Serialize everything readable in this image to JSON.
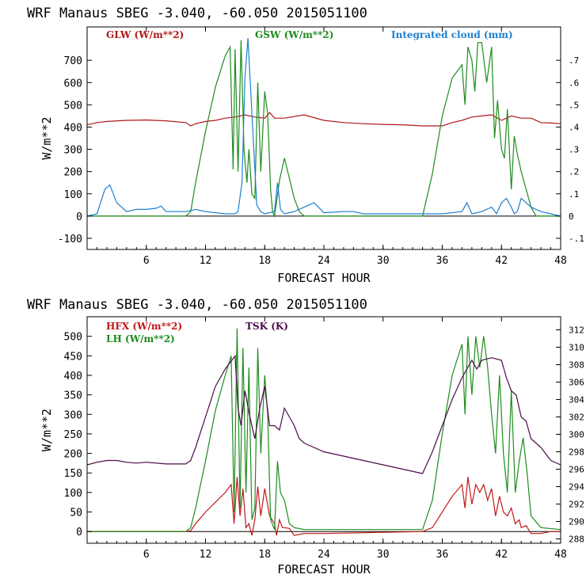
{
  "chart_data": [
    {
      "type": "line",
      "title": "WRF   Manaus SBEG   -3.040, -60.050  2015051100",
      "xlabel": "FORECAST HOUR",
      "ylabel": "W/m**2",
      "xlim": [
        0,
        48
      ],
      "xticks": [
        6,
        12,
        18,
        24,
        30,
        36,
        42,
        48
      ],
      "ylim": [
        -150,
        850
      ],
      "yticks": [
        -100,
        0,
        100,
        200,
        300,
        400,
        500,
        600,
        700
      ],
      "ytick_labels": [
        "-100",
        "0",
        "100",
        "200",
        "300",
        "400",
        "500",
        "600",
        "700"
      ],
      "y2lim": [
        -0.15,
        0.85
      ],
      "y2ticks": [
        -0.1,
        0,
        0.1,
        0.2,
        0.3,
        0.4,
        0.5,
        0.6,
        0.7
      ],
      "y2tick_labels": [
        "-.1",
        "0",
        ".1",
        ".2",
        ".3",
        ".4",
        ".5",
        ".6",
        ".7"
      ],
      "zero_line": true,
      "series": [
        {
          "name": "GLW (W/m**2)",
          "color": "#b01818",
          "axis": "left",
          "x": [
            0,
            1,
            2,
            4,
            6,
            8,
            10,
            10.5,
            11,
            12,
            13,
            14,
            15,
            16,
            17,
            18,
            18.5,
            19,
            20,
            22,
            24,
            26,
            28,
            30,
            32,
            34,
            36,
            37,
            38,
            39,
            40,
            41,
            42,
            43,
            44,
            45,
            46,
            47,
            48
          ],
          "y": [
            410,
            420,
            425,
            430,
            432,
            428,
            420,
            405,
            415,
            425,
            430,
            440,
            445,
            455,
            445,
            440,
            465,
            440,
            440,
            455,
            430,
            420,
            415,
            412,
            410,
            405,
            405,
            420,
            430,
            445,
            450,
            455,
            430,
            450,
            440,
            440,
            420,
            418,
            415
          ]
        },
        {
          "name": "GSW (W/m**2)",
          "color": "#1e8c1e",
          "axis": "left",
          "x": [
            0,
            10,
            10.5,
            11,
            12,
            13,
            14,
            14.5,
            14.8,
            15,
            15.3,
            15.6,
            15.9,
            16.2,
            16.4,
            16.7,
            17,
            17.3,
            17.6,
            18,
            18.3,
            18.6,
            18.8,
            19,
            19.5,
            20,
            20.5,
            21,
            21.5,
            22,
            34,
            35,
            36,
            37,
            38,
            38.3,
            38.6,
            39,
            39.3,
            39.6,
            40,
            40.5,
            41,
            41.3,
            41.6,
            42,
            42.3,
            42.6,
            43,
            43.3,
            43.6,
            44,
            44.5,
            45,
            45.5,
            46,
            48
          ],
          "y": [
            0,
            0,
            20,
            150,
            380,
            580,
            720,
            760,
            210,
            750,
            200,
            790,
            300,
            150,
            300,
            100,
            80,
            600,
            200,
            560,
            460,
            120,
            20,
            0,
            160,
            260,
            170,
            80,
            20,
            0,
            0,
            190,
            450,
            620,
            680,
            500,
            760,
            700,
            560,
            780,
            780,
            600,
            760,
            350,
            520,
            300,
            260,
            480,
            120,
            360,
            280,
            200,
            120,
            40,
            0,
            0,
            0
          ]
        },
        {
          "name": "Integrated cloud (mm)",
          "color": "#1f7fd0",
          "axis": "right",
          "x": [
            0,
            1,
            1.8,
            2.3,
            3,
            4,
            5,
            6,
            7,
            7.5,
            8,
            9,
            10,
            11,
            12,
            14,
            15,
            15.3,
            15.7,
            16,
            16.3,
            16.6,
            16.9,
            17.2,
            17.6,
            18,
            19,
            19.3,
            19.6,
            20,
            21,
            22,
            23,
            24,
            26,
            27,
            28,
            30,
            36,
            38,
            38.5,
            39,
            40,
            41,
            41.5,
            42,
            42.5,
            43,
            43.3,
            43.6,
            44,
            45,
            46,
            47,
            48
          ],
          "y": [
            0,
            0.01,
            0.12,
            0.14,
            0.06,
            0.02,
            0.03,
            0.03,
            0.035,
            0.045,
            0.02,
            0.02,
            0.02,
            0.03,
            0.02,
            0.01,
            0.01,
            0.02,
            0.15,
            0.62,
            0.8,
            0.55,
            0.3,
            0.05,
            0.02,
            0.01,
            0.02,
            0.15,
            0.03,
            0.01,
            0.02,
            0.04,
            0.06,
            0.015,
            0.02,
            0.02,
            0.01,
            0.01,
            0.01,
            0.02,
            0.06,
            0.01,
            0.02,
            0.04,
            0.01,
            0.06,
            0.08,
            0.04,
            0.01,
            0.02,
            0.08,
            0.04,
            0.02,
            0.01,
            0.0
          ]
        }
      ]
    },
    {
      "type": "line",
      "title": "WRF   Manaus SBEG   -3.040, -60.050  2015051100",
      "xlabel": "FORECAST HOUR",
      "ylabel": "W/m**2",
      "xlim": [
        0,
        48
      ],
      "xticks": [
        6,
        12,
        18,
        24,
        30,
        36,
        42,
        48
      ],
      "ylim": [
        -30,
        550
      ],
      "yticks": [
        0,
        50,
        100,
        150,
        200,
        250,
        300,
        350,
        400,
        450,
        500
      ],
      "ytick_labels": [
        "0",
        "50",
        "100",
        "150",
        "200",
        "250",
        "300",
        "350",
        "400",
        "450",
        "500"
      ],
      "y2lim": [
        287.5,
        313.5
      ],
      "y2ticks": [
        288,
        290,
        292,
        294,
        296,
        298,
        300,
        302,
        304,
        306,
        308,
        310,
        312
      ],
      "y2tick_labels": [
        "288",
        "290",
        "292",
        "294",
        "296",
        "298",
        "300",
        "302",
        "304",
        "306",
        "308",
        "310",
        "312"
      ],
      "zero_line": true,
      "series": [
        {
          "name": "HFX (W/m**2)",
          "color": "#c01818",
          "axis": "left",
          "x": [
            0,
            10,
            10.5,
            11,
            12,
            13,
            14,
            14.6,
            14.9,
            15.2,
            15.5,
            15.8,
            16.1,
            16.4,
            16.7,
            17,
            17.3,
            17.6,
            18,
            18.5,
            19,
            19.2,
            19.5,
            19.8,
            20,
            20.5,
            21,
            22,
            24,
            34,
            35,
            36,
            37,
            38,
            38.3,
            38.6,
            39,
            39.4,
            39.8,
            40.2,
            40.6,
            41,
            41.4,
            41.8,
            42.2,
            42.6,
            43,
            43.4,
            43.8,
            44,
            44.5,
            45,
            46,
            47,
            48
          ],
          "y": [
            0,
            0,
            2,
            20,
            50,
            75,
            100,
            120,
            20,
            140,
            40,
            110,
            10,
            20,
            -10,
            30,
            115,
            40,
            110,
            40,
            20,
            -10,
            30,
            10,
            10,
            8,
            -10,
            -5,
            -5,
            0,
            10,
            50,
            90,
            120,
            60,
            140,
            70,
            120,
            100,
            120,
            80,
            110,
            40,
            90,
            50,
            40,
            60,
            20,
            30,
            10,
            15,
            -5,
            -5,
            0,
            0
          ]
        },
        {
          "name": "LH  (W/m**2)",
          "color": "#1e8c1e",
          "axis": "left",
          "x": [
            0,
            10,
            10.5,
            11,
            12,
            13,
            14,
            14.6,
            14.9,
            15.2,
            15.5,
            15.8,
            16.1,
            16.4,
            16.7,
            17,
            17.3,
            17.6,
            18,
            18.3,
            18.6,
            19,
            19.3,
            19.6,
            20,
            20.5,
            21,
            22,
            24,
            34,
            35,
            36,
            37,
            38,
            38.3,
            38.6,
            39,
            39.4,
            39.8,
            40.2,
            40.6,
            41,
            41.4,
            41.8,
            42.2,
            42.6,
            43,
            43.4,
            43.8,
            44.2,
            44.6,
            45,
            46,
            48
          ],
          "y": [
            0,
            0,
            10,
            60,
            180,
            310,
            400,
            450,
            50,
            520,
            60,
            470,
            100,
            420,
            30,
            60,
            470,
            200,
            400,
            300,
            30,
            5,
            180,
            100,
            80,
            20,
            10,
            5,
            5,
            5,
            80,
            250,
            400,
            480,
            300,
            500,
            350,
            500,
            420,
            500,
            420,
            300,
            200,
            400,
            200,
            100,
            360,
            100,
            180,
            240,
            150,
            40,
            10,
            5
          ]
        },
        {
          "name": "TSK (K)",
          "color": "#4a0a4a",
          "axis": "right",
          "x": [
            0,
            1,
            2,
            3,
            4,
            5,
            6,
            8,
            10,
            10.5,
            11,
            12,
            13,
            14,
            15,
            15.3,
            15.6,
            16,
            16.5,
            17,
            17.5,
            18,
            18.5,
            19,
            19.5,
            20,
            20.5,
            21,
            21.5,
            22,
            23,
            24,
            26,
            28,
            30,
            32,
            34,
            35,
            36,
            37,
            38,
            38.5,
            39,
            39.5,
            40,
            41,
            42,
            42.5,
            43,
            43.5,
            44,
            44.5,
            45,
            46,
            47,
            48
          ],
          "y": [
            296.5,
            296.8,
            297,
            297,
            296.8,
            296.7,
            296.8,
            296.6,
            296.6,
            297,
            298.5,
            302,
            305.5,
            307.5,
            309,
            303,
            301,
            305,
            302,
            299.5,
            303,
            305.5,
            301,
            301,
            300.5,
            303,
            302,
            301,
            299.5,
            299,
            298.5,
            298,
            297.5,
            297,
            296.5,
            296,
            295.5,
            298,
            301,
            304,
            306.5,
            307.5,
            308.5,
            307.5,
            308.5,
            308.8,
            308.5,
            306.5,
            305,
            304.5,
            302,
            301.5,
            299.5,
            298.5,
            297,
            296.5
          ]
        }
      ]
    }
  ]
}
